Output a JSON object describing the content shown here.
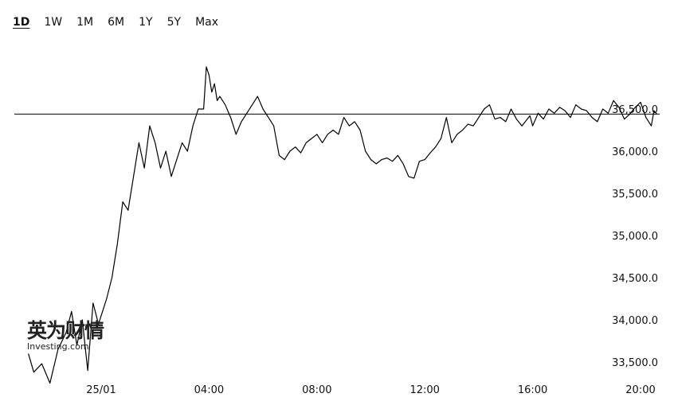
{
  "range_tabs": [
    {
      "label": "1D",
      "active": true
    },
    {
      "label": "1W",
      "active": false
    },
    {
      "label": "1M",
      "active": false
    },
    {
      "label": "6M",
      "active": false
    },
    {
      "label": "1Y",
      "active": false
    },
    {
      "label": "5Y",
      "active": false
    },
    {
      "label": "Max",
      "active": false
    }
  ],
  "watermark": {
    "cn": "英为财情",
    "en": "Investing.com"
  },
  "chart_data": {
    "type": "line",
    "title": "",
    "xlabel": "",
    "ylabel": "",
    "x_ticks": [
      "25/01",
      "04:00",
      "08:00",
      "12:00",
      "16:00",
      "20:00"
    ],
    "x_tick_hours": [
      0,
      4,
      8,
      12,
      16,
      20
    ],
    "y_ticks": [
      "33,500.0",
      "34,000.0",
      "34,500.0",
      "35,000.0",
      "35,500.0",
      "36,000.0",
      "36,500.0"
    ],
    "y_tick_values": [
      33500,
      34000,
      34500,
      35000,
      35500,
      36000,
      36500
    ],
    "ylim": [
      33250,
      37000
    ],
    "xlim_hours": [
      -2.7,
      22.0
    ],
    "reference_line": 36440,
    "grid": false,
    "series": [
      {
        "x_hours": [
          -2.7,
          -2.5,
          -2.2,
          -1.9,
          -1.6,
          -1.3,
          -1.1,
          -0.9,
          -0.7,
          -0.5,
          -0.3,
          -0.1,
          0.2,
          0.4,
          0.6,
          0.8,
          1.0,
          1.2,
          1.4,
          1.6,
          1.8,
          2.0,
          2.2,
          2.4,
          2.6,
          2.8,
          3.0,
          3.2,
          3.4,
          3.6,
          3.8,
          3.9,
          4.0,
          4.1,
          4.2,
          4.3,
          4.4,
          4.6,
          4.8,
          5.0,
          5.2,
          5.4,
          5.6,
          5.8,
          6.0,
          6.2,
          6.4,
          6.6,
          6.8,
          7.0,
          7.2,
          7.4,
          7.6,
          7.8,
          8.0,
          8.2,
          8.4,
          8.6,
          8.8,
          9.0,
          9.2,
          9.4,
          9.6,
          9.8,
          10.0,
          10.2,
          10.4,
          10.6,
          10.8,
          11.0,
          11.2,
          11.4,
          11.6,
          11.8,
          12.0,
          12.2,
          12.4,
          12.6,
          12.8,
          13.0,
          13.2,
          13.4,
          13.6,
          13.8,
          14.0,
          14.2,
          14.4,
          14.6,
          14.8,
          15.0,
          15.2,
          15.4,
          15.6,
          15.8,
          15.9,
          16.0,
          16.2,
          16.4,
          16.6,
          16.8,
          17.0,
          17.2,
          17.4,
          17.6,
          17.8,
          18.0,
          18.2,
          18.4,
          18.6,
          18.8,
          19.0,
          19.2,
          19.4,
          19.6,
          19.8,
          20.0,
          20.2,
          20.4,
          20.5,
          20.6
        ],
        "values": [
          33600,
          33380,
          33480,
          33250,
          33650,
          33850,
          34100,
          33700,
          34000,
          33400,
          34200,
          33950,
          34250,
          34500,
          34900,
          35400,
          35300,
          35700,
          36100,
          35800,
          36300,
          36100,
          35800,
          36000,
          35700,
          35900,
          36100,
          36000,
          36300,
          36500,
          36500,
          37000,
          36900,
          36700,
          36800,
          36600,
          36650,
          36550,
          36400,
          36200,
          36350,
          36450,
          36550,
          36650,
          36500,
          36400,
          36300,
          35950,
          35900,
          36000,
          36050,
          35980,
          36100,
          36150,
          36200,
          36100,
          36200,
          36250,
          36200,
          36400,
          36300,
          36350,
          36250,
          36000,
          35900,
          35850,
          35900,
          35920,
          35880,
          35950,
          35850,
          35700,
          35680,
          35880,
          35900,
          35980,
          36050,
          36150,
          36400,
          36100,
          36200,
          36250,
          36320,
          36300,
          36400,
          36500,
          36550,
          36380,
          36400,
          36350,
          36500,
          36380,
          36300,
          36380,
          36420,
          36300,
          36450,
          36380,
          36500,
          36450,
          36520,
          36480,
          36400,
          36550,
          36500,
          36480,
          36400,
          36350,
          36500,
          36450,
          36600,
          36520,
          36380,
          36440,
          36520,
          36580,
          36400,
          36300,
          36480,
          36440
        ]
      }
    ]
  }
}
